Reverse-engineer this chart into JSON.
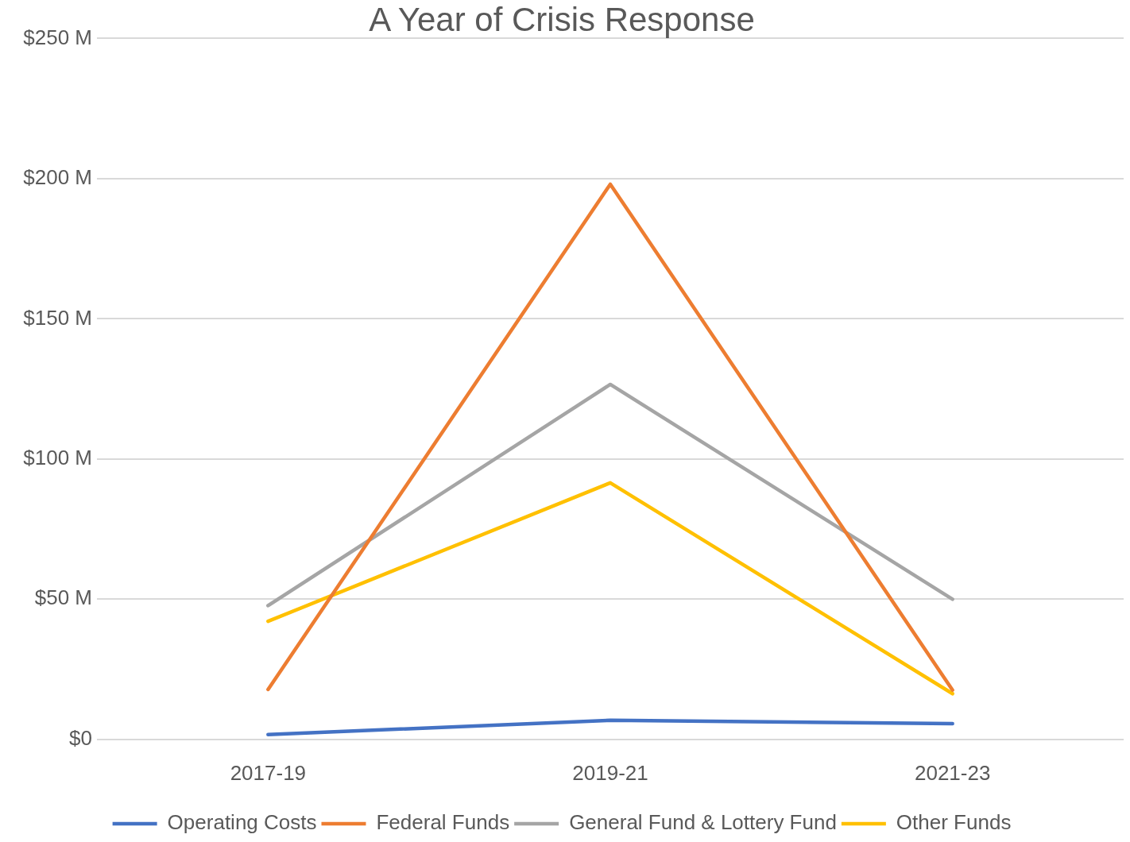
{
  "chart_data": {
    "type": "line",
    "title": "A Year of Crisis Response",
    "categories": [
      "2017-19",
      "2019-21",
      "2021-23"
    ],
    "series": [
      {
        "name": "Operating Costs",
        "color": "#4472c4",
        "values": [
          1.7,
          6.8,
          5.6
        ]
      },
      {
        "name": "Federal Funds",
        "color": "#ed7d31",
        "values": [
          17.8,
          198,
          17.6
        ]
      },
      {
        "name": "General Fund & Lottery Fund",
        "color": "#a5a5a5",
        "values": [
          47.7,
          126.6,
          50
        ]
      },
      {
        "name": "Other Funds",
        "color": "#ffc000",
        "values": [
          42.1,
          91.5,
          16.3
        ]
      }
    ],
    "ylim": [
      0,
      250
    ],
    "yticks": [
      {
        "value": 0,
        "label": "$0"
      },
      {
        "value": 50,
        "label": "$50 M"
      },
      {
        "value": 100,
        "label": "$100 M"
      },
      {
        "value": 150,
        "label": "$150 M"
      },
      {
        "value": 200,
        "label": "$200 M"
      },
      {
        "value": 250,
        "label": "$250 M"
      }
    ],
    "grid": "y",
    "legend": "bottom",
    "marker": "none"
  }
}
